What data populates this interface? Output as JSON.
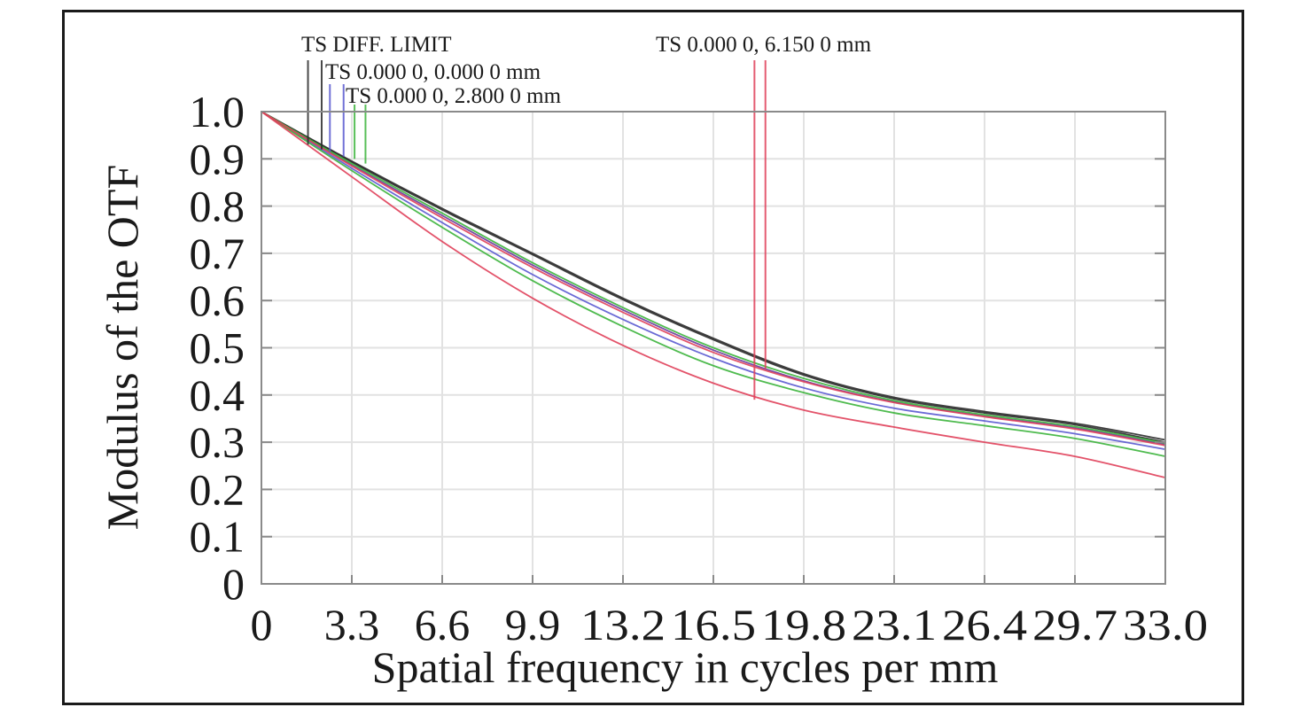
{
  "chart_data": {
    "type": "line",
    "title": "",
    "xlabel": "Spatial frequency in cycles per mm",
    "ylabel": "Modulus of the OTF",
    "xlim": [
      0,
      33.0
    ],
    "ylim": [
      0,
      1.0
    ],
    "grid": true,
    "x_ticks": [
      "0",
      "3.3",
      "6.6",
      "9.9",
      "13.2",
      "16.5",
      "19.8",
      "23.1",
      "26.4",
      "29.7",
      "33.0"
    ],
    "y_ticks": [
      "0",
      "0.1",
      "0.2",
      "0.3",
      "0.4",
      "0.5",
      "0.6",
      "0.7",
      "0.8",
      "0.9",
      "1.0"
    ],
    "legend": [
      {
        "label": "TS DIFF. LIMIT",
        "color": "#2a2a2a"
      },
      {
        "label": "TS 0.000 0, 0.000 0 mm",
        "color": "#5a5ad0"
      },
      {
        "label": "TS 0.000 0, 2.800 0 mm",
        "color": "#3cb43c"
      },
      {
        "label": "TS 0.000 0, 6.150 0 mm",
        "color": "#e0405a"
      }
    ],
    "legend_placement": "top",
    "x": [
      0,
      3.3,
      6.6,
      9.9,
      13.2,
      16.5,
      19.8,
      23.1,
      26.4,
      29.7,
      33.0
    ],
    "series": [
      {
        "name": "TS DIFF. LIMIT (T)",
        "color": "#2a2a2a",
        "values": [
          1.0,
          0.895,
          0.795,
          0.7,
          0.605,
          0.52,
          0.445,
          0.395,
          0.365,
          0.34,
          0.305
        ]
      },
      {
        "name": "TS DIFF. LIMIT (S)",
        "color": "#2a2a2a",
        "values": [
          1.0,
          0.893,
          0.792,
          0.697,
          0.602,
          0.517,
          0.442,
          0.392,
          0.362,
          0.337,
          0.3
        ]
      },
      {
        "name": "TS 0.000 0, 0.000 0 mm (T)",
        "color": "#6a3a9a",
        "values": [
          1.0,
          0.887,
          0.78,
          0.675,
          0.58,
          0.495,
          0.43,
          0.385,
          0.355,
          0.33,
          0.295
        ]
      },
      {
        "name": "TS 0.000 0, 0.000 0 mm (S)",
        "color": "#5a5ad0",
        "values": [
          1.0,
          0.88,
          0.765,
          0.655,
          0.56,
          0.478,
          0.415,
          0.372,
          0.345,
          0.318,
          0.285
        ]
      },
      {
        "name": "TS 0.000 0, 2.800 0 mm (T)",
        "color": "#3cb43c",
        "values": [
          1.0,
          0.89,
          0.785,
          0.68,
          0.585,
          0.5,
          0.435,
          0.388,
          0.358,
          0.333,
          0.298
        ]
      },
      {
        "name": "TS 0.000 0, 2.800 0 mm (S)",
        "color": "#3cb43c",
        "values": [
          1.0,
          0.875,
          0.755,
          0.642,
          0.545,
          0.462,
          0.405,
          0.362,
          0.335,
          0.308,
          0.27
        ]
      },
      {
        "name": "TS 0.000 0, 6.150 0 mm (T)",
        "color": "#e0405a",
        "values": [
          1.0,
          0.885,
          0.775,
          0.67,
          0.575,
          0.49,
          0.428,
          0.384,
          0.354,
          0.328,
          0.293
        ]
      },
      {
        "name": "TS 0.000 0, 6.150 0 mm (S)",
        "color": "#e0405a",
        "values": [
          1.0,
          0.862,
          0.725,
          0.605,
          0.505,
          0.425,
          0.368,
          0.332,
          0.3,
          0.27,
          0.225
        ]
      }
    ],
    "markers": [
      {
        "label_index": 0,
        "color": "#2a2a2a",
        "x": [
          1.7,
          2.2
        ],
        "y_end": [
          0.93,
          0.92
        ]
      },
      {
        "label_index": 1,
        "color": "#5a5ad0",
        "x": [
          2.5,
          3.0
        ],
        "y_end": [
          0.915,
          0.905
        ]
      },
      {
        "label_index": 2,
        "color": "#3cb43c",
        "x": [
          3.4,
          3.8
        ],
        "y_end": [
          0.9,
          0.89
        ]
      },
      {
        "label_index": 3,
        "color": "#e0405a",
        "x": [
          18.0,
          18.4
        ],
        "y_end": [
          0.39,
          0.455
        ]
      }
    ]
  }
}
